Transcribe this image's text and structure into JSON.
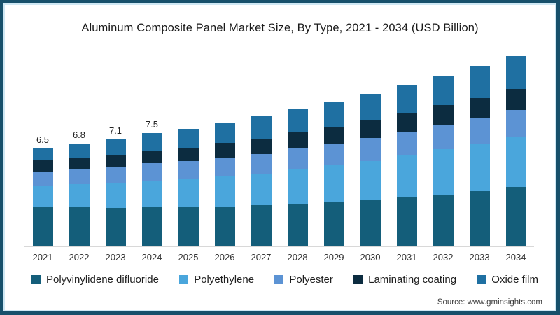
{
  "title": "Aluminum Composite Panel Market Size, By Type, 2021 - 2034 (USD Billion)",
  "source": "Source: www.gminsights.com",
  "frame": {
    "border_color": "#17506B",
    "inner_line_color": "#CFE8F4",
    "background": "#ffffff"
  },
  "chart_data": {
    "type": "bar",
    "stacked": true,
    "title": "Aluminum Composite Panel Market Size, By Type, 2021 - 2034 (USD Billion)",
    "xlabel": "",
    "ylabel": "",
    "ylim": [
      0,
      13
    ],
    "grid": false,
    "legend_position": "bottom",
    "axis_line_color": "#d8d8d8",
    "categories": [
      "2021",
      "2022",
      "2023",
      "2024",
      "2025",
      "2026",
      "2027",
      "2028",
      "2029",
      "2030",
      "2031",
      "2032",
      "2033",
      "2034"
    ],
    "totals": [
      6.5,
      6.8,
      7.1,
      7.5,
      7.8,
      8.2,
      8.6,
      9.1,
      9.6,
      10.1,
      10.7,
      11.3,
      11.9,
      12.6
    ],
    "value_labels": [
      "6.5",
      "6.8",
      "7.1",
      "7.5",
      "",
      "",
      "",
      "",
      "",
      "",
      "",
      "",
      "",
      ""
    ],
    "series": [
      {
        "name": "Polyvinylidene difluoride",
        "color": "#145E7A",
        "values": [
          2.61,
          2.58,
          2.56,
          2.61,
          2.59,
          2.66,
          2.74,
          2.83,
          2.95,
          3.04,
          3.25,
          3.45,
          3.67,
          3.96
        ]
      },
      {
        "name": "Polyethylene",
        "color": "#4AA6DC",
        "values": [
          1.42,
          1.53,
          1.64,
          1.75,
          1.86,
          1.97,
          2.08,
          2.26,
          2.43,
          2.61,
          2.79,
          2.97,
          3.14,
          3.32
        ]
      },
      {
        "name": "Polyester",
        "color": "#5C93D4",
        "values": [
          0.94,
          1.0,
          1.06,
          1.13,
          1.19,
          1.25,
          1.31,
          1.38,
          1.44,
          1.51,
          1.57,
          1.64,
          1.7,
          1.77
        ]
      },
      {
        "name": "Laminating coating",
        "color": "#0C2C40",
        "values": [
          0.73,
          0.78,
          0.82,
          0.87,
          0.91,
          0.96,
          1.0,
          1.06,
          1.11,
          1.17,
          1.22,
          1.28,
          1.33,
          1.39
        ]
      },
      {
        "name": "Oxide film",
        "color": "#1F70A2",
        "values": [
          0.8,
          0.91,
          1.02,
          1.14,
          1.25,
          1.36,
          1.47,
          1.57,
          1.67,
          1.77,
          1.87,
          1.96,
          2.06,
          2.16
        ]
      }
    ]
  }
}
